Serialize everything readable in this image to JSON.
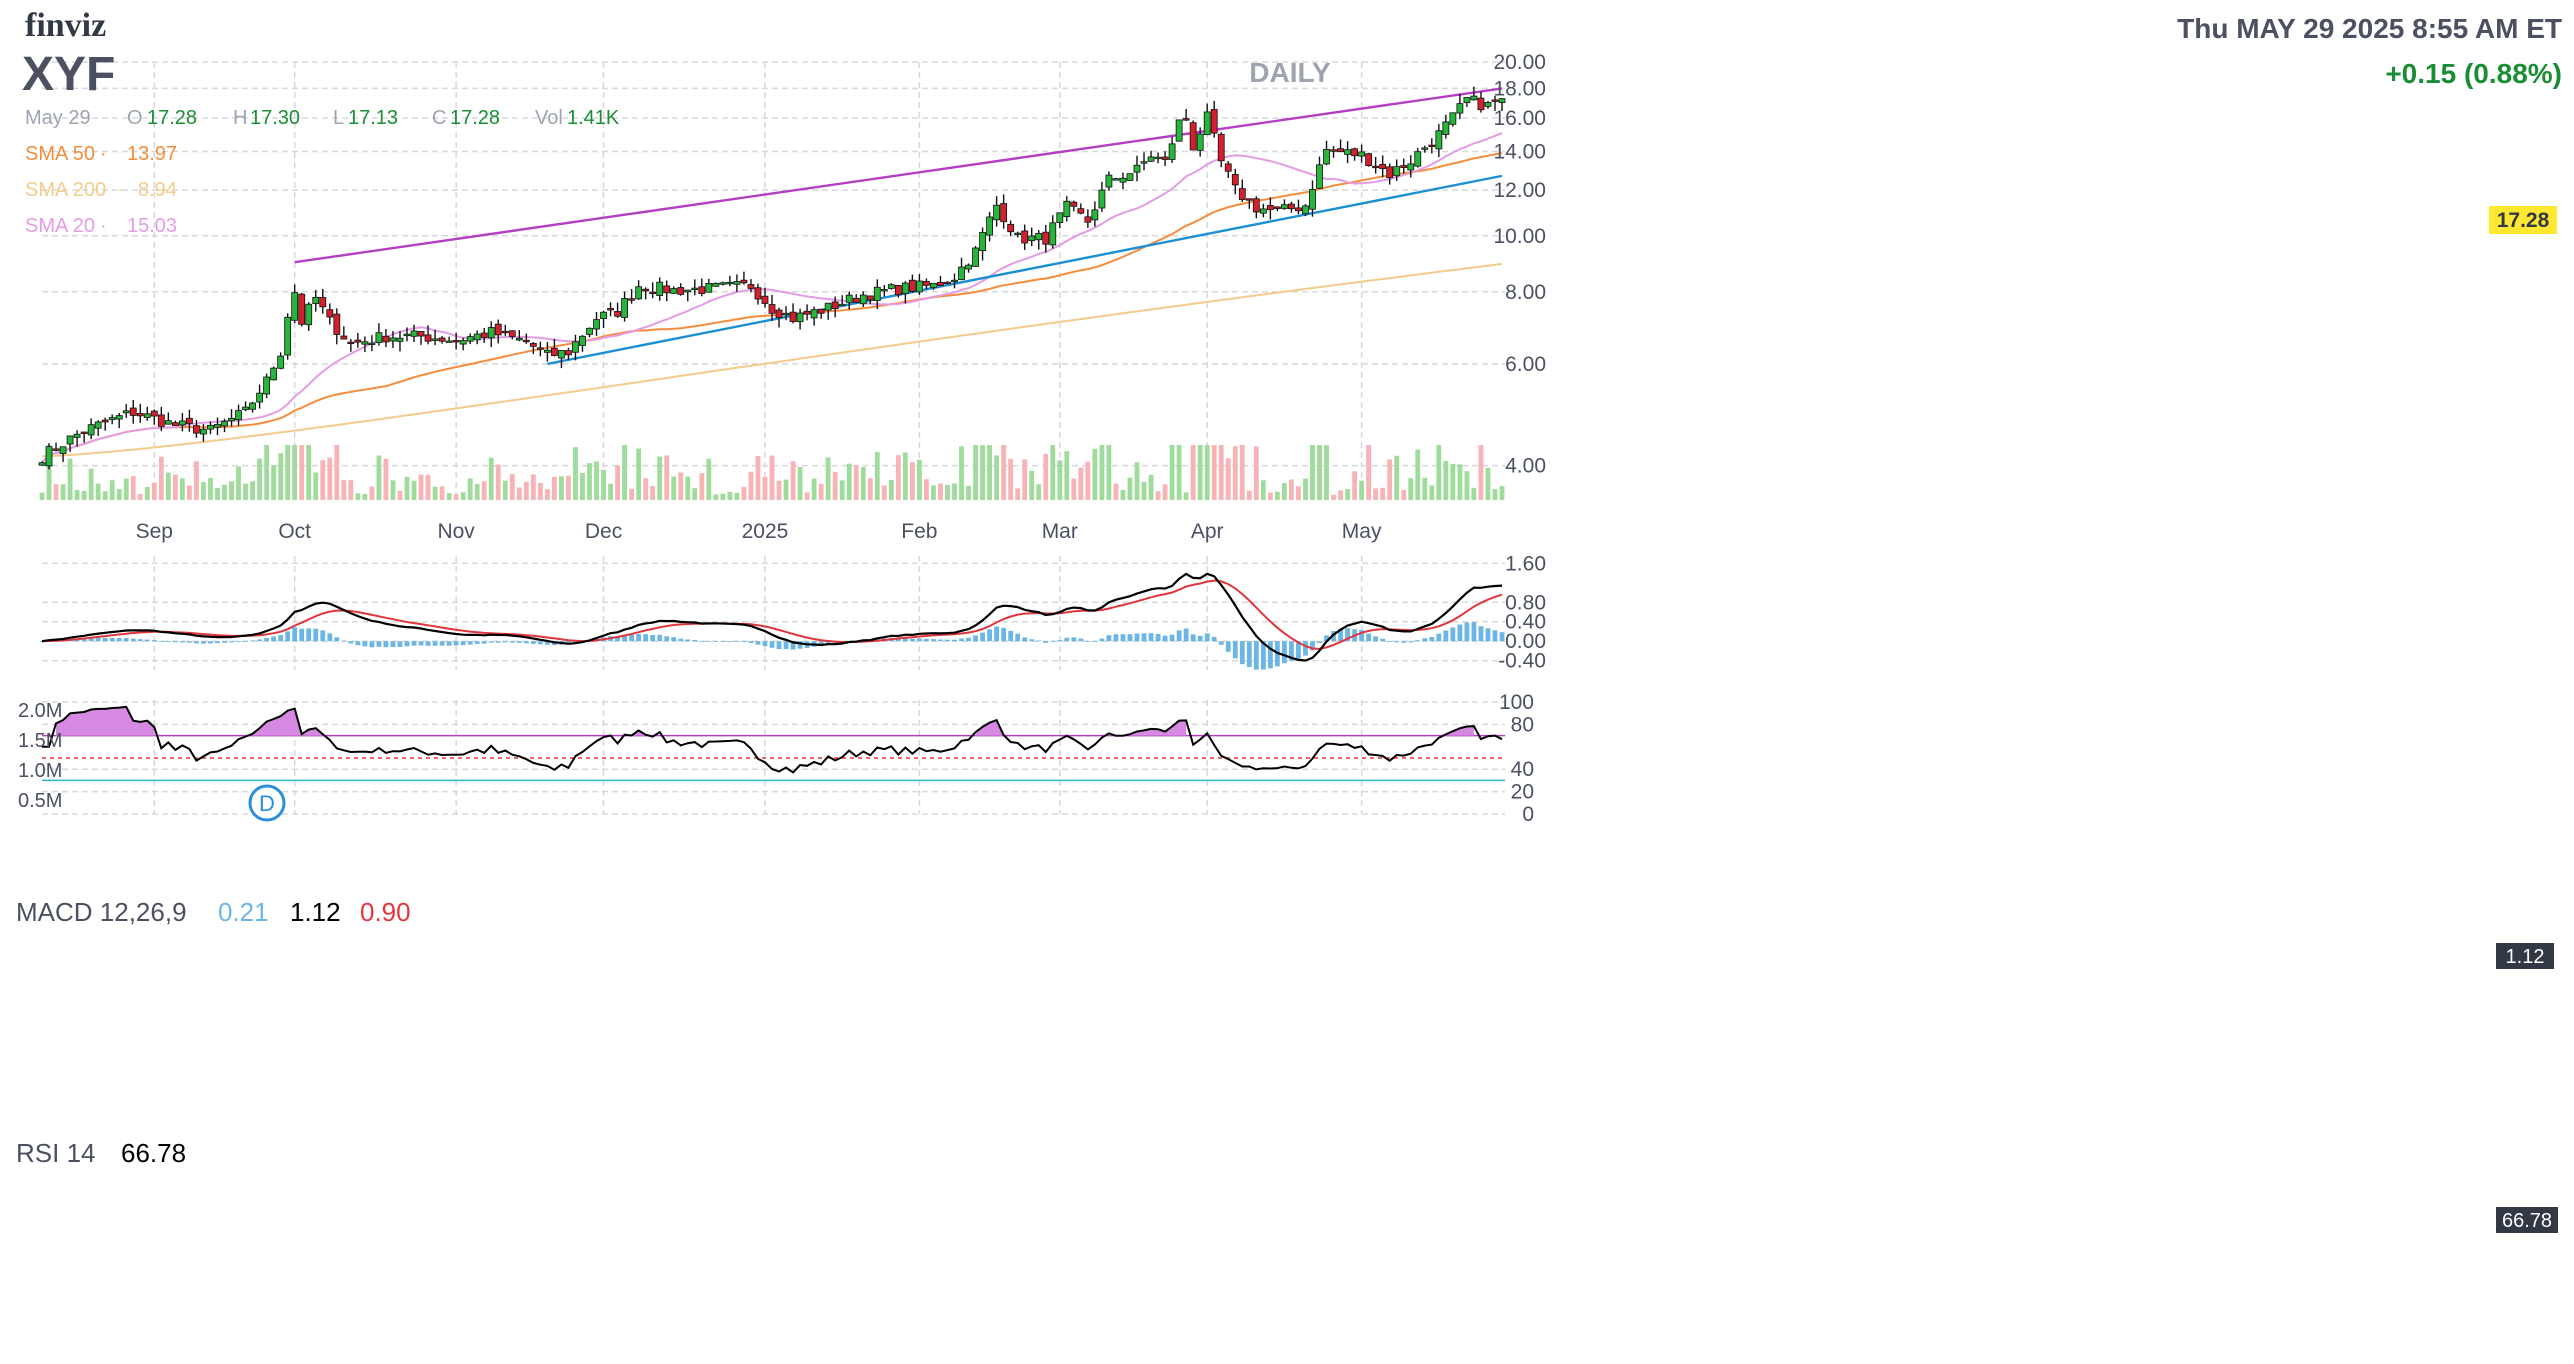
{
  "header": {
    "logo": "finviz",
    "ticker": "XYF",
    "timeframe": "DAILY",
    "datetime": "Thu MAY 29 2025 8:55 AM ET",
    "change": "+0.15 (0.88%)"
  },
  "ohlc": {
    "date": "May 29",
    "o_label": "O",
    "o": "17.28",
    "h_label": "H",
    "h": "17.30",
    "l_label": "L",
    "l": "17.13",
    "c_label": "C",
    "c": "17.28",
    "vol_label": "Vol",
    "vol": "1.41K"
  },
  "indicators": [
    {
      "label": "SMA 50",
      "value": "13.97",
      "color": "#f58d3c"
    },
    {
      "label": "SMA 200",
      "value": "8.94",
      "color": "#f3cc8c"
    },
    {
      "label": "SMA 20",
      "value": "15.03",
      "color": "#e49ce6"
    }
  ],
  "price_badge": "17.28",
  "dividend_marker": "D",
  "colors": {
    "up": "#27b53a",
    "down": "#d4202c",
    "vol_up": "#9fdc9c",
    "vol_down": "#f7b3b5",
    "macd": "#000000",
    "signal": "#e0363d",
    "hist": "#6cb6e6",
    "rsi": "#000000",
    "rsi_fill": "#d689e1",
    "upper_channel": "#b43fc3",
    "lower_channel": "#1b8fd4",
    "grid": "#d6d8dc",
    "badge_bg": "#ffe732",
    "accent_green": "#1b8e35"
  },
  "chart_data": [
    {
      "type": "candlestick",
      "title": "XYF",
      "subtitle": "DAILY",
      "x_labels": [
        "Sep",
        "Oct",
        "Nov",
        "Dec",
        "2025",
        "Feb",
        "Mar",
        "Apr",
        "May"
      ],
      "y_ticks": [
        "20.00",
        "18.00",
        "16.00",
        "14.00",
        "12.00",
        "10.00",
        "8.00",
        "6.00",
        "4.00"
      ],
      "ylim": [
        3.6,
        20
      ],
      "volume_ticks": [
        "2.0M",
        "1.5M",
        "1.0M",
        "0.5M"
      ],
      "anchors": [
        {
          "date": "Aug 12",
          "price": 4.15
        },
        {
          "date": "Aug 20",
          "price": 4.6
        },
        {
          "date": "Aug 29",
          "price": 4.95
        },
        {
          "date": "Sep 06",
          "price": 4.7
        },
        {
          "date": "Sep 13",
          "price": 4.6
        },
        {
          "date": "Sep 20",
          "price": 4.95
        },
        {
          "date": "Sep 25",
          "price": 5.6
        },
        {
          "date": "Sep 27",
          "price": 6.3
        },
        {
          "date": "Sep 30",
          "price": 7.3
        },
        {
          "date": "Oct 01",
          "price": 8.0
        },
        {
          "date": "Oct 02",
          "price": 7.1
        },
        {
          "date": "Oct 04",
          "price": 7.8
        },
        {
          "date": "Oct 08",
          "price": 7.1
        },
        {
          "date": "Oct 11",
          "price": 6.5
        },
        {
          "date": "Oct 18",
          "price": 6.7
        },
        {
          "date": "Oct 25",
          "price": 6.7
        },
        {
          "date": "Nov 01",
          "price": 6.6
        },
        {
          "date": "Nov 08",
          "price": 6.8
        },
        {
          "date": "Nov 15",
          "price": 6.55
        },
        {
          "date": "Nov 20",
          "price": 6.2
        },
        {
          "date": "Nov 25",
          "price": 6.3
        },
        {
          "date": "Nov 29",
          "price": 7.2
        },
        {
          "date": "Dec 04",
          "price": 7.4
        },
        {
          "date": "Dec 09",
          "price": 8.2
        },
        {
          "date": "Dec 16",
          "price": 8.05
        },
        {
          "date": "Dec 23",
          "price": 8.1
        },
        {
          "date": "Dec 31",
          "price": 8.2
        },
        {
          "date": "Jan 03",
          "price": 7.5
        },
        {
          "date": "Jan 08",
          "price": 7.2
        },
        {
          "date": "Jan 15",
          "price": 7.5
        },
        {
          "date": "Jan 22",
          "price": 7.9
        },
        {
          "date": "Jan 29",
          "price": 8.1
        },
        {
          "date": "Feb 05",
          "price": 8.2
        },
        {
          "date": "Feb 10",
          "price": 8.5
        },
        {
          "date": "Feb 13",
          "price": 9.4
        },
        {
          "date": "Feb 18",
          "price": 11.3
        },
        {
          "date": "Feb 21",
          "price": 9.9
        },
        {
          "date": "Feb 27",
          "price": 9.9
        },
        {
          "date": "Mar 04",
          "price": 11.2
        },
        {
          "date": "Mar 07",
          "price": 10.6
        },
        {
          "date": "Mar 12",
          "price": 12.5
        },
        {
          "date": "Mar 18",
          "price": 13.0
        },
        {
          "date": "Mar 20",
          "price": 13.8
        },
        {
          "date": "Mar 24",
          "price": 13.4
        },
        {
          "date": "Mar 26",
          "price": 15.7
        },
        {
          "date": "Mar 27",
          "price": 16.0
        },
        {
          "date": "Mar 28",
          "price": 14.3
        },
        {
          "date": "Apr 01",
          "price": 16.0
        },
        {
          "date": "Apr 03",
          "price": 13.4
        },
        {
          "date": "Apr 07",
          "price": 12.0
        },
        {
          "date": "Apr 10",
          "price": 11.2
        },
        {
          "date": "Apr 15",
          "price": 11.0
        },
        {
          "date": "Apr 21",
          "price": 11.3
        },
        {
          "date": "Apr 24",
          "price": 14.1
        },
        {
          "date": "May 01",
          "price": 13.8
        },
        {
          "date": "May 07",
          "price": 12.8
        },
        {
          "date": "May 12",
          "price": 13.5
        },
        {
          "date": "May 16",
          "price": 15.0
        },
        {
          "date": "May 20",
          "price": 16.0
        },
        {
          "date": "May 22",
          "price": 17.2
        },
        {
          "date": "May 27",
          "price": 16.8
        },
        {
          "date": "May 29",
          "price": 17.28
        }
      ],
      "sma_values_last": {
        "SMA 20": 15.03,
        "SMA 50": 13.97,
        "SMA 200": 8.94
      },
      "channel_upper": [
        {
          "date": "Oct 01",
          "price": 9.0
        },
        {
          "date": "May 29",
          "price": 18.0
        }
      ],
      "channel_lower": [
        {
          "date": "Nov 20",
          "price": 6.0
        },
        {
          "date": "May 29",
          "price": 12.7
        }
      ],
      "last_price": 17.28
    },
    {
      "type": "line",
      "title": "MACD 12,26,9",
      "legend": [
        "0.21",
        "1.12",
        "0.90"
      ],
      "series": [
        {
          "name": "MACD",
          "last": 1.12
        },
        {
          "name": "Signal",
          "last": 0.9
        },
        {
          "name": "Histogram",
          "last": 0.21
        }
      ],
      "y_ticks": [
        "1.60",
        "0.80",
        "0.40",
        "0.00",
        "-0.40"
      ],
      "hidden_ticks": [
        "1.20"
      ],
      "ylim": [
        -0.55,
        1.75
      ],
      "badge": "1.12"
    },
    {
      "type": "line",
      "title": "RSI 14",
      "value": "66.78",
      "y_ticks": [
        "100",
        "80",
        "40",
        "20",
        "0"
      ],
      "hidden_ticks": [
        "60"
      ],
      "ylim": [
        0,
        100
      ],
      "overbought": 70,
      "oversold": 30,
      "badge": "66.78"
    }
  ]
}
